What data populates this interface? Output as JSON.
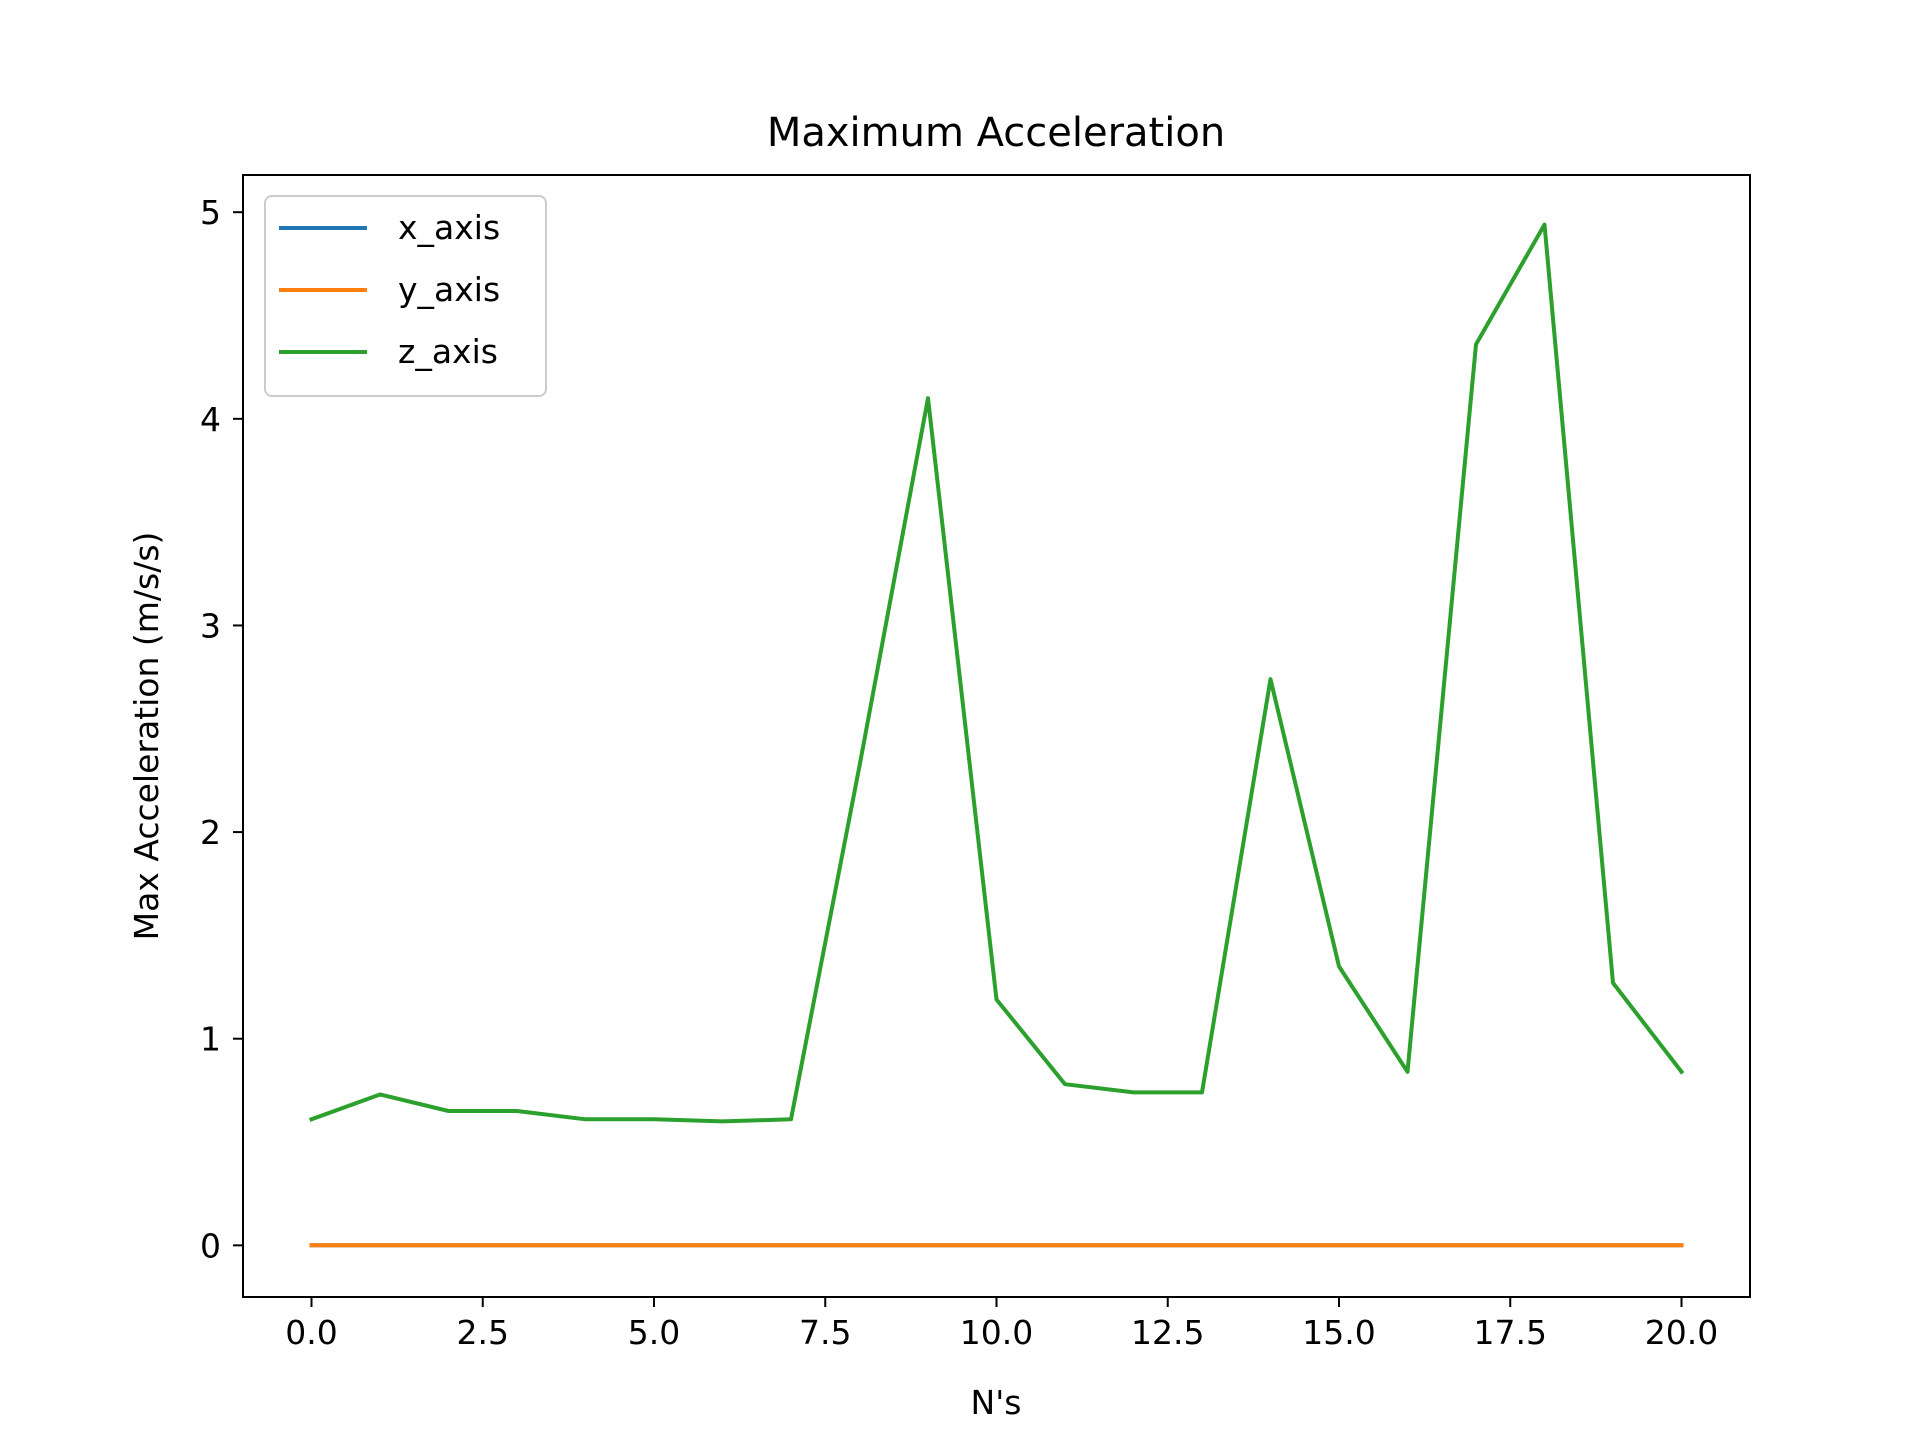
{
  "chart_data": {
    "type": "line",
    "title": "Maximum Acceleration",
    "xlabel": "N's",
    "ylabel": "Max Acceleration (m/s/s)",
    "xlim": [
      -1.0,
      21.0
    ],
    "ylim": [
      -0.25,
      5.18
    ],
    "xticks": [
      0,
      2.5,
      5,
      7.5,
      10,
      12.5,
      15,
      17.5,
      20
    ],
    "xtick_labels": [
      "0.0",
      "2.5",
      "5.0",
      "7.5",
      "10.0",
      "12.5",
      "15.0",
      "17.5",
      "20.0"
    ],
    "yticks": [
      0,
      1,
      2,
      3,
      4,
      5
    ],
    "ytick_labels": [
      "0",
      "1",
      "2",
      "3",
      "4",
      "5"
    ],
    "grid": false,
    "legend": "upper-left",
    "x": [
      0,
      1,
      2,
      3,
      4,
      5,
      6,
      7,
      8,
      9,
      10,
      11,
      12,
      13,
      14,
      15,
      16,
      17,
      18,
      19,
      20
    ],
    "series": [
      {
        "name": "x_axis",
        "color": "#1f77b4",
        "values": [
          0,
          0,
          0,
          0,
          0,
          0,
          0,
          0,
          0,
          0,
          0,
          0,
          0,
          0,
          0,
          0,
          0,
          0,
          0,
          0,
          0
        ]
      },
      {
        "name": "y_axis",
        "color": "#ff7f0e",
        "values": [
          0,
          0,
          0,
          0,
          0,
          0,
          0,
          0,
          0,
          0,
          0,
          0,
          0,
          0,
          0,
          0,
          0,
          0,
          0,
          0,
          0
        ]
      },
      {
        "name": "z_axis",
        "color": "#2ca02c",
        "values": [
          0.61,
          0.73,
          0.65,
          0.65,
          0.61,
          0.61,
          0.6,
          0.61,
          2.32,
          4.1,
          1.19,
          0.78,
          0.74,
          0.74,
          2.74,
          1.35,
          0.84,
          4.36,
          4.94,
          1.27,
          0.84
        ]
      }
    ]
  }
}
